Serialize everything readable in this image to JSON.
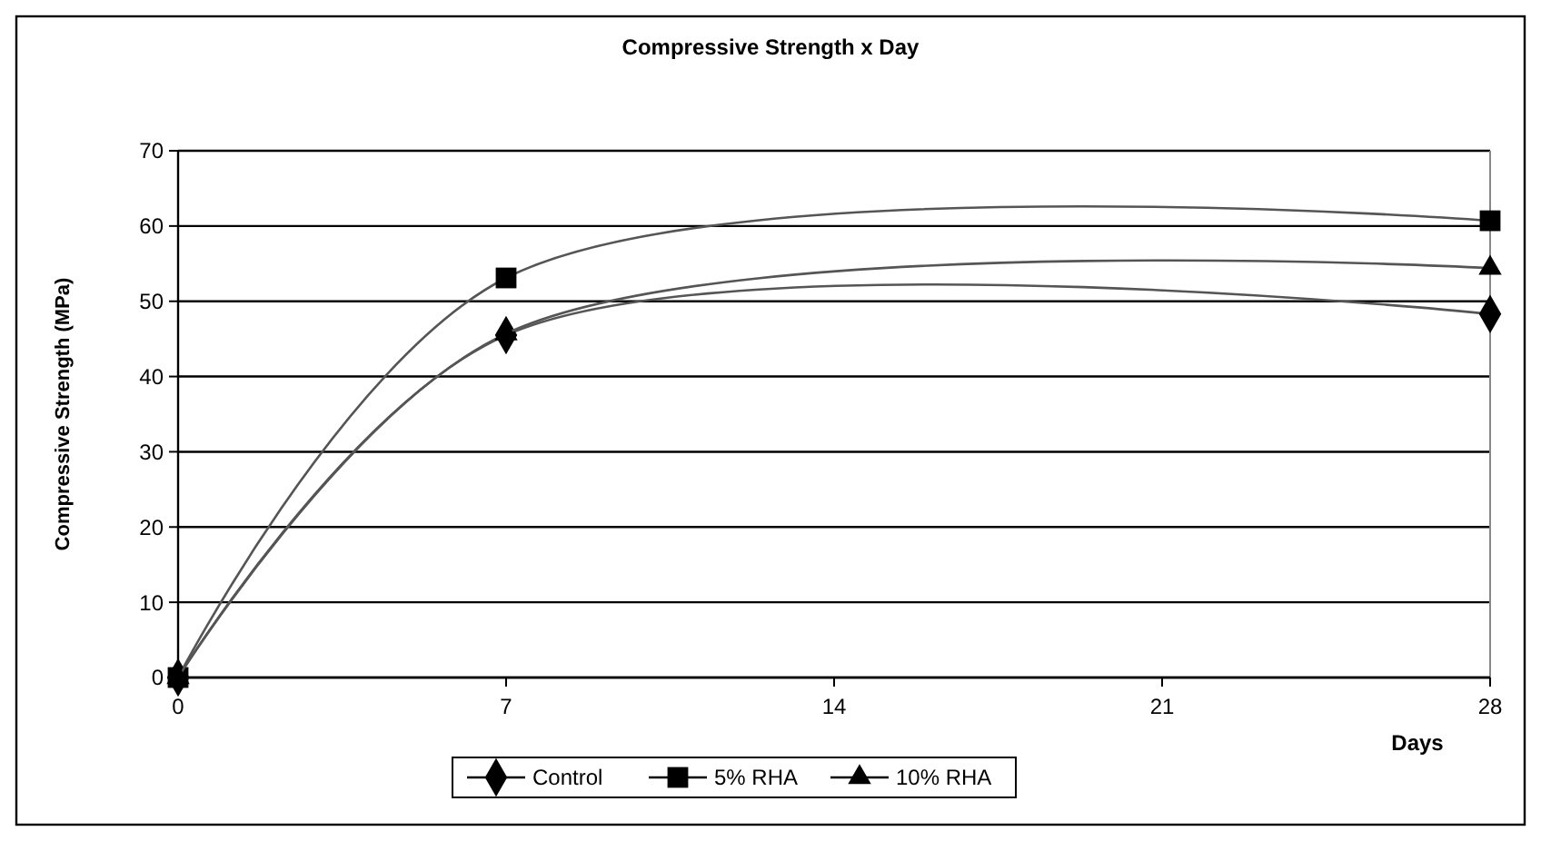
{
  "chart_data": {
    "type": "line",
    "title": "Compressive Strength x Day",
    "xlabel": "Days",
    "ylabel": "Compressive Strength (MPa)",
    "x": [
      0,
      7,
      28
    ],
    "series": [
      {
        "name": "Control",
        "color": "#000000",
        "values": [
          0,
          45.5,
          48.3
        ],
        "marker": "diamond"
      },
      {
        "name": "5% RHA",
        "color": "#000000",
        "values": [
          0,
          53.1,
          60.7
        ],
        "marker": "square"
      },
      {
        "name": "10% RHA",
        "color": "#000000",
        "values": [
          0,
          45.7,
          54.4
        ],
        "marker": "triangle"
      }
    ],
    "xlim": [
      0,
      28
    ],
    "xticks": [
      0,
      7,
      14,
      21,
      28
    ],
    "ylim": [
      0,
      70
    ],
    "yticks": [
      0,
      10,
      20,
      30,
      40,
      50,
      60,
      70
    ],
    "grid": "y",
    "legend": "bottom",
    "line_style": "solid"
  }
}
